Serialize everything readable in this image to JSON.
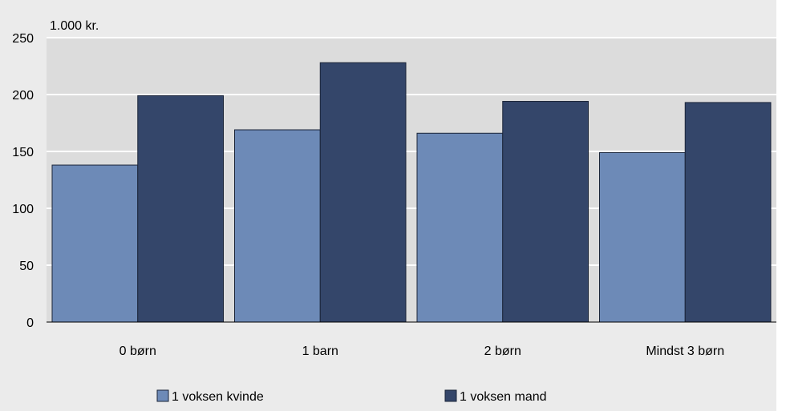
{
  "chart_data": {
    "type": "bar",
    "unit_label": "1.000 kr.",
    "categories": [
      "0 børn",
      "1 barn",
      "2 børn",
      "Mindst 3 børn"
    ],
    "series": [
      {
        "name": "1 voksen kvinde",
        "values": [
          138,
          169,
          166,
          149
        ],
        "color": "#6d8ab7"
      },
      {
        "name": "1 voksen mand",
        "values": [
          199,
          228,
          194,
          193
        ],
        "color": "#34466a"
      }
    ],
    "ylim": [
      0,
      250
    ],
    "yticks": [
      0,
      50,
      100,
      150,
      200,
      250
    ],
    "grid": true,
    "legend_position": "bottom",
    "colors": {
      "plot_background": "#dcdcdc",
      "frame_background": "#ebebeb",
      "gridline": "#ffffff",
      "bar_border": "#1a2438"
    }
  }
}
